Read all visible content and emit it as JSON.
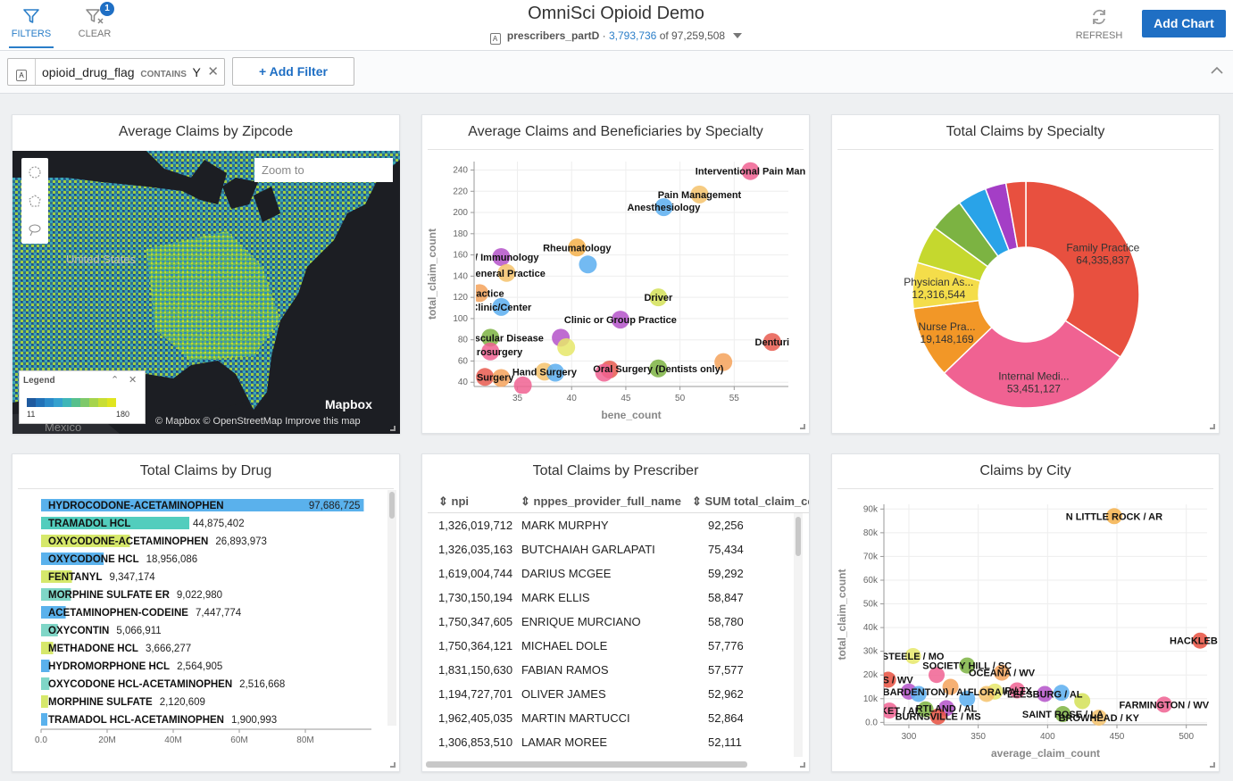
{
  "header": {
    "filters_label": "FILTERS",
    "clear_label": "CLEAR",
    "clear_badge": "1",
    "title": "OmniSci Opioid Demo",
    "datasource": "prescribers_partD",
    "filtered_count": "3,793,736",
    "of_text": "of 97,259,508",
    "refresh_label": "REFRESH",
    "add_chart_label": "Add Chart",
    "accent_color": "#1f6fc4"
  },
  "filterbar": {
    "filter_column": "opioid_drug_flag",
    "filter_operator": "CONTAINS",
    "filter_value": "Y",
    "add_filter_label": "+ Add Filter"
  },
  "map_panel": {
    "title": "Average Claims by Zipcode",
    "zoom_placeholder": "Zoom to",
    "label_us": "United States",
    "label_mexico": "Mexico",
    "legend_title": "Legend",
    "legend_min": "11",
    "legend_max": "180",
    "legend_colors": [
      "#1f5a9e",
      "#2172b8",
      "#2a8ac9",
      "#34a1cf",
      "#3eb6b8",
      "#56c08c",
      "#7ec96a",
      "#a6d44c",
      "#c8de34",
      "#e0e51f"
    ],
    "mapbox_logo": "Mapbox",
    "attribution": "© Mapbox  © OpenStreetMap  Improve this map"
  },
  "chart_data": [
    {
      "type": "scatter",
      "title": "Average Claims and Beneficiaries by Specialty",
      "xlabel": "bene_count",
      "ylabel": "total_claim_count",
      "xlim": [
        31,
        60
      ],
      "ylim": [
        36,
        248
      ],
      "xticks": [
        35,
        40,
        45,
        50,
        55
      ],
      "yticks": [
        40,
        60,
        80,
        100,
        120,
        140,
        160,
        180,
        200,
        220,
        240
      ],
      "points": [
        {
          "x": 56.5,
          "y": 239,
          "color": "#f06292",
          "label": "Interventional Pain Man"
        },
        {
          "x": 51.8,
          "y": 217,
          "color": "#f5c26b",
          "label": "Pain Management"
        },
        {
          "x": 48.5,
          "y": 205,
          "color": "#5aaef0",
          "label": "Anesthesiology"
        },
        {
          "x": 40.5,
          "y": 167,
          "color": "#f5b04a",
          "label": "Rheumatology"
        },
        {
          "x": 33.5,
          "y": 158,
          "color": "#b452c9",
          "label": "gy/ Immunology"
        },
        {
          "x": 41.5,
          "y": 151,
          "color": "#5aaef0",
          "label": ""
        },
        {
          "x": 34.0,
          "y": 143,
          "color": "#f5c26b",
          "label": "General Practice"
        },
        {
          "x": 31.5,
          "y": 124,
          "color": "#f5a25a",
          "label": "ly Practice"
        },
        {
          "x": 48.0,
          "y": 120,
          "color": "#d4e157",
          "label": "Driver"
        },
        {
          "x": 33.5,
          "y": 111,
          "color": "#5aaef0",
          "label": "Clinic/Center"
        },
        {
          "x": 44.5,
          "y": 99,
          "color": "#b452c9",
          "label": "Clinic or Group Practice"
        },
        {
          "x": 32.5,
          "y": 82,
          "color": "#7cb342",
          "label": "neral Vascular Disease"
        },
        {
          "x": 39.0,
          "y": 82,
          "color": "#b452c9",
          "label": ""
        },
        {
          "x": 39.5,
          "y": 73,
          "color": "#e6e86a",
          "label": ""
        },
        {
          "x": 58.5,
          "y": 78,
          "color": "#e85a4f",
          "label": "Denturi"
        },
        {
          "x": 32.5,
          "y": 69,
          "color": "#f06292",
          "label": "Neurosurgery"
        },
        {
          "x": 54.0,
          "y": 59,
          "color": "#f5a25a",
          "label": ""
        },
        {
          "x": 48.0,
          "y": 53,
          "color": "#7cb342",
          "label": "Oral Surgery (Dentists only)"
        },
        {
          "x": 43.5,
          "y": 52,
          "color": "#e85a4f",
          "label": ""
        },
        {
          "x": 37.5,
          "y": 50,
          "color": "#f5c26b",
          "label": "Hand Surgery"
        },
        {
          "x": 38.5,
          "y": 49,
          "color": "#5aaef0",
          "label": ""
        },
        {
          "x": 43.0,
          "y": 49,
          "color": "#f06292",
          "label": ""
        },
        {
          "x": 32.0,
          "y": 45,
          "color": "#e85a4f",
          "label": "ular Surgery"
        },
        {
          "x": 33.5,
          "y": 44,
          "color": "#f5a25a",
          "label": ""
        },
        {
          "x": 35.5,
          "y": 37,
          "color": "#f06292",
          "label": ""
        }
      ]
    },
    {
      "type": "pie",
      "title": "Total Claims by Specialty",
      "slices": [
        {
          "label": "Family Practice",
          "value": 64335837,
          "display": "64,335,837",
          "color": "#e8503f",
          "shown": true
        },
        {
          "label": "Internal Medi...",
          "value": 53451127,
          "display": "53,451,127",
          "color": "#f06292",
          "shown": true
        },
        {
          "label": "Nurse Pra...",
          "value": 19148169,
          "display": "19,148,169",
          "color": "#f29727",
          "shown": true
        },
        {
          "label": "Physician As...",
          "value": 12316544,
          "display": "12,316,544",
          "color": "#f4dd4a",
          "shown": true
        },
        {
          "label": "",
          "value": 10300000,
          "display": "",
          "color": "#c5d82e",
          "shown": false
        },
        {
          "label": "",
          "value": 9300000,
          "display": "",
          "color": "#7cb342",
          "shown": false
        },
        {
          "label": "",
          "value": 7800000,
          "display": "",
          "color": "#29a3e8",
          "shown": false
        },
        {
          "label": "",
          "value": 5600000,
          "display": "",
          "color": "#a43ec6",
          "shown": false
        },
        {
          "label": "",
          "value": 5300000,
          "display": "",
          "color": "#e8503f",
          "shown": false
        }
      ]
    },
    {
      "type": "bar",
      "orientation": "horizontal",
      "title": "Total Claims by Drug",
      "xlim": [
        0,
        100000000
      ],
      "xticks": [
        "0.0",
        "20M",
        "40M",
        "60M",
        "80M"
      ],
      "bars": [
        {
          "label": "HYDROCODONE-ACETAMINOPHEN",
          "value": 97686725,
          "display": "97,686,725",
          "color": "#5ab1ec"
        },
        {
          "label": "TRAMADOL HCL",
          "value": 44875402,
          "display": "44,875,402",
          "color": "#52cdbd"
        },
        {
          "label": "OXYCODONE-ACETAMINOPHEN",
          "value": 26893973,
          "display": "26,893,973",
          "color": "#d6e86b"
        },
        {
          "label": "OXYCODONE HCL",
          "value": 18956086,
          "display": "18,956,086",
          "color": "#5ab1ec"
        },
        {
          "label": "FENTANYL",
          "value": 9347174,
          "display": "9,347,174",
          "color": "#d6e86b"
        },
        {
          "label": "MORPHINE SULFATE ER",
          "value": 9022980,
          "display": "9,022,980",
          "color": "#7fd6c7"
        },
        {
          "label": "ACETAMINOPHEN-CODEINE",
          "value": 7447774,
          "display": "7,447,774",
          "color": "#5ab1ec"
        },
        {
          "label": "OXYCONTIN",
          "value": 5066911,
          "display": "5,066,911",
          "color": "#7fd6c7"
        },
        {
          "label": "METHADONE HCL",
          "value": 3666277,
          "display": "3,666,277",
          "color": "#d6e86b"
        },
        {
          "label": "HYDROMORPHONE HCL",
          "value": 2564905,
          "display": "2,564,905",
          "color": "#5ab1ec"
        },
        {
          "label": "OXYCODONE HCL-ACETAMINOPHEN",
          "value": 2516668,
          "display": "2,516,668",
          "color": "#7fd6c7"
        },
        {
          "label": "MORPHINE SULFATE",
          "value": 2120609,
          "display": "2,120,609",
          "color": "#d6e86b"
        },
        {
          "label": "TRAMADOL HCL-ACETAMINOPHEN",
          "value": 1900993,
          "display": "1,900,993",
          "color": "#5ab1ec"
        }
      ]
    },
    {
      "type": "table",
      "title": "Total Claims by Prescriber",
      "columns": [
        "npi",
        "nppes_provider_full_name",
        "SUM total_claim_co"
      ],
      "rows": [
        [
          "1,326,019,712",
          "MARK MURPHY",
          "92,256"
        ],
        [
          "1,326,035,163",
          "BUTCHAIAH GARLAPATI",
          "75,434"
        ],
        [
          "1,619,004,744",
          "DARIUS MCGEE",
          "59,292"
        ],
        [
          "1,730,150,194",
          "MARK ELLIS",
          "58,847"
        ],
        [
          "1,750,347,605",
          "ENRIQUE MURCIANO",
          "58,780"
        ],
        [
          "1,750,364,121",
          "MICHAEL DOLE",
          "57,776"
        ],
        [
          "1,831,150,630",
          "FABIAN RAMOS",
          "57,577"
        ],
        [
          "1,194,727,701",
          "OLIVER JAMES",
          "52,962"
        ],
        [
          "1,962,405,035",
          "MARTIN MARTUCCI",
          "52,864"
        ],
        [
          "1,306,853,510",
          "LAMAR MOREE",
          "52,111"
        ]
      ]
    },
    {
      "type": "scatter",
      "title": "Claims by City",
      "xlabel": "average_claim_count",
      "ylabel": "total_claim_count",
      "xlim": [
        282,
        515
      ],
      "ylim": [
        -1000,
        92000
      ],
      "xticks": [
        300,
        350,
        400,
        450,
        500
      ],
      "xtick_labels": [
        "300",
        "350",
        "400",
        "450",
        "500"
      ],
      "yticks": [
        0,
        10000,
        20000,
        30000,
        40000,
        50000,
        60000,
        70000,
        80000,
        90000
      ],
      "ytick_labels": [
        "0.0",
        "10k",
        "20k",
        "30k",
        "40k",
        "50k",
        "60k",
        "70k",
        "80k",
        "90k"
      ],
      "points": [
        {
          "x": 448,
          "y": 87000,
          "color": "#f5b04a",
          "label": "N LITTLE ROCK / AR"
        },
        {
          "x": 510,
          "y": 34500,
          "color": "#e8503f",
          "label": "HACKLEBUF"
        },
        {
          "x": 303,
          "y": 28000,
          "color": "#e6e86a",
          "label": "STEELE / MO"
        },
        {
          "x": 342,
          "y": 24000,
          "color": "#7cb342",
          "label": "SOCIETY HILL / SC"
        },
        {
          "x": 367,
          "y": 21000,
          "color": "#f5a25a",
          "label": "OCEANA / WV"
        },
        {
          "x": 285,
          "y": 18000,
          "color": "#e8503f",
          "label": "LENS / WV"
        },
        {
          "x": 320,
          "y": 20000,
          "color": "#f06292",
          "label": ""
        },
        {
          "x": 300,
          "y": 13000,
          "color": "#b452c9",
          "label": "ANCH (BARDENTON) / AL"
        },
        {
          "x": 307,
          "y": 12000,
          "color": "#5aaef0",
          "label": ""
        },
        {
          "x": 330,
          "y": 15000,
          "color": "#f5a25a",
          "label": ""
        },
        {
          "x": 362,
          "y": 13000,
          "color": "#e6e86a",
          "label": "FLORA / AL"
        },
        {
          "x": 378,
          "y": 13500,
          "color": "#f06292",
          "label": "IP / TX"
        },
        {
          "x": 398,
          "y": 12000,
          "color": "#b452c9",
          "label": "LEESBURG / AL"
        },
        {
          "x": 410,
          "y": 12500,
          "color": "#5aaef0",
          "label": ""
        },
        {
          "x": 342,
          "y": 10000,
          "color": "#5aaef0",
          "label": ""
        },
        {
          "x": 356,
          "y": 12000,
          "color": "#f5c26b",
          "label": ""
        },
        {
          "x": 286,
          "y": 5000,
          "color": "#f06292",
          "label": "MARKET / AL"
        },
        {
          "x": 312,
          "y": 5500,
          "color": "#7cb342",
          "label": ""
        },
        {
          "x": 327,
          "y": 6000,
          "color": "#b452c9",
          "label": "RTLAND / AL"
        },
        {
          "x": 321,
          "y": 2500,
          "color": "#e8503f",
          "label": "BURNSVILLE / MS"
        },
        {
          "x": 425,
          "y": 9000,
          "color": "#d4e157",
          "label": ""
        },
        {
          "x": 411,
          "y": 3500,
          "color": "#7cb342",
          "label": "SAINT ROSE / LA"
        },
        {
          "x": 437,
          "y": 2000,
          "color": "#f5c26b",
          "label": "BROWHEAD / KY"
        },
        {
          "x": 484,
          "y": 7500,
          "color": "#f06292",
          "label": "FARMINGTON / WV"
        }
      ]
    }
  ]
}
